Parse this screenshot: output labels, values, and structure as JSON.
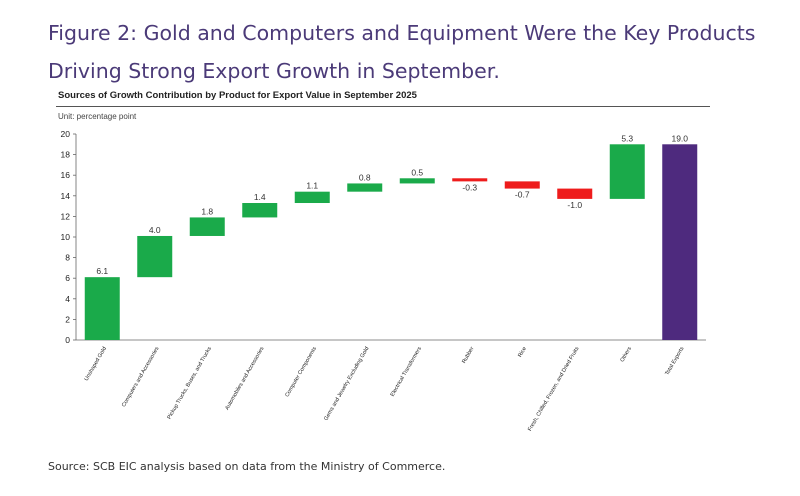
{
  "figure_title": "Figure 2: Gold and Computers and Equipment Were the Key Products Driving Strong Export Growth in September.",
  "source": "Source: SCB EIC analysis based on data from the Ministry of Commerce.",
  "colors": {
    "positive": "#1aaa4a",
    "negative": "#ee1c1c",
    "total": "#4e2a7e",
    "title": "#4b3a78"
  },
  "chart_data": {
    "type": "bar",
    "subtype": "waterfall",
    "title": "Sources of Growth Contribution by Product for Export Value  in September 2025",
    "unit_label": "Unit: percentage point",
    "ylim": [
      0,
      20
    ],
    "yticks": [
      "0",
      "2",
      "4",
      "6",
      "8",
      "10",
      "12",
      "14",
      "16",
      "18",
      "20"
    ],
    "categories": [
      "Unshaped Gold",
      "Computers and Accessories",
      "Pickup Trucks, Buses, and Trucks",
      "Automobiles and Accessories",
      "Computer Components",
      "Gems and Jewelry Excluding Gold",
      "Electrical Transformers",
      "Rubber",
      "Rice",
      "Fresh, Chilled, Frozen, and Dried Fruits",
      "Others",
      "Total Exports"
    ],
    "values": [
      6.1,
      4.0,
      1.8,
      1.4,
      1.1,
      0.8,
      0.5,
      -0.3,
      -0.7,
      -1.0,
      5.3,
      19.0
    ],
    "labels": [
      "6.1",
      "4.0",
      "1.8",
      "1.4",
      "1.1",
      "0.8",
      "0.5",
      "-0.3",
      "-0.7",
      "-1.0",
      "5.3",
      "19.0"
    ],
    "is_total": [
      false,
      false,
      false,
      false,
      false,
      false,
      false,
      false,
      false,
      false,
      false,
      true
    ]
  }
}
